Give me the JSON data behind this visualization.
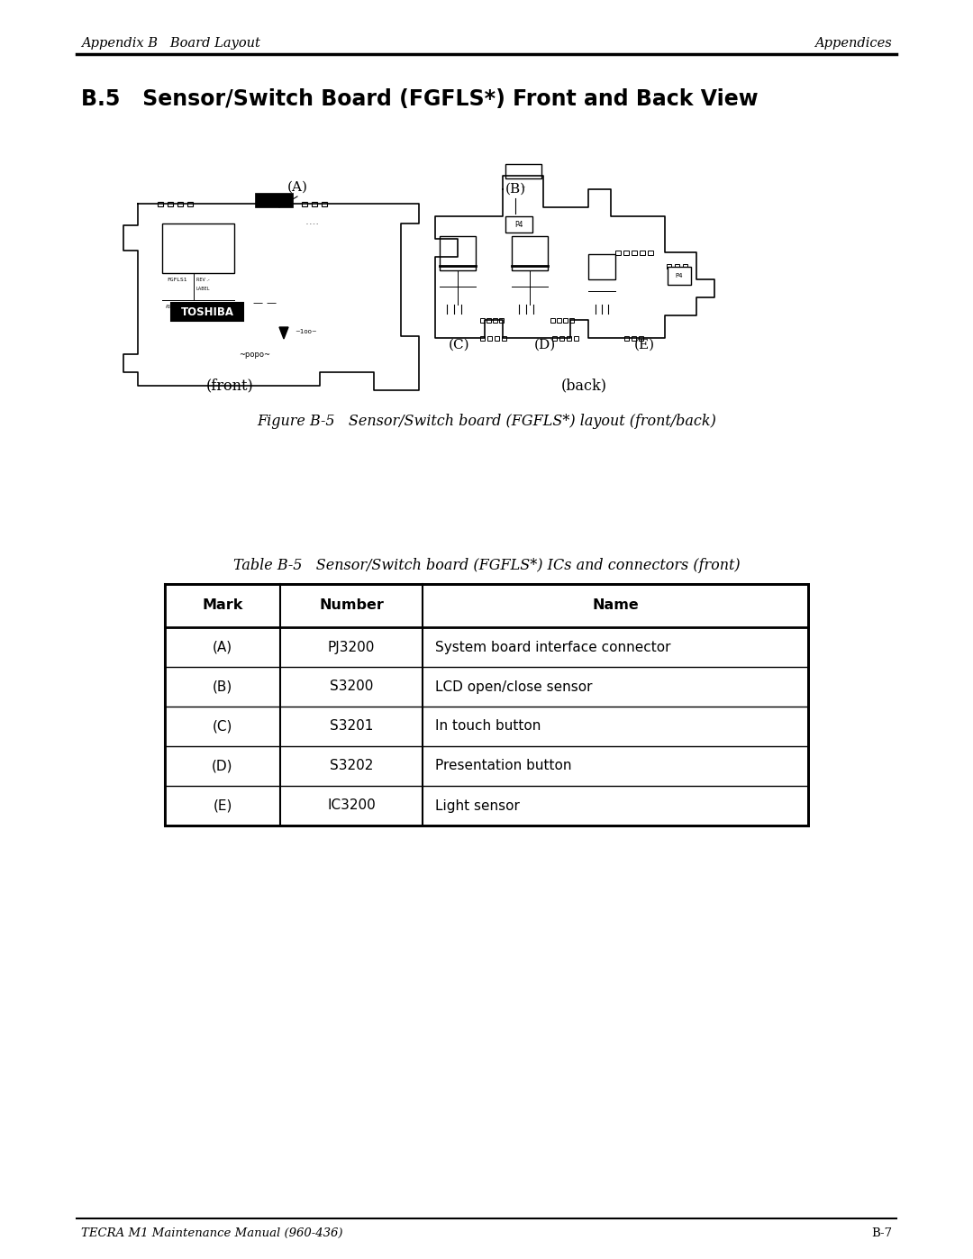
{
  "header_left": "Appendix B   Board Layout",
  "header_right": "Appendices",
  "section_title": "B.5   Sensor/Switch Board (FGFLS*) Front and Back View",
  "figure_caption": "Figure B-5   Sensor/Switch board (FGFLS*) layout (front/back)",
  "table_caption": "Table B-5   Sensor/Switch board (FGFLS*) ICs and connectors (front)",
  "table_headers": [
    "Mark",
    "Number",
    "Name"
  ],
  "table_rows": [
    [
      "(A)",
      "PJ3200",
      "System board interface connector"
    ],
    [
      "(B)",
      "S3200",
      "LCD open/close sensor"
    ],
    [
      "(C)",
      "S3201",
      "In touch button"
    ],
    [
      "(D)",
      "S3202",
      "Presentation button"
    ],
    [
      "(E)",
      "IC3200",
      "Light sensor"
    ]
  ],
  "footer_left": "TECRA M1 Maintenance Manual (960-436)",
  "footer_right": "B-7",
  "bg_color": "#ffffff",
  "text_color": "#000000",
  "label_A": "(A)",
  "label_B": "(B)",
  "label_C": "(C)",
  "label_D": "(D)",
  "label_E": "(E)",
  "label_front": "(front)",
  "label_back": "(back)"
}
